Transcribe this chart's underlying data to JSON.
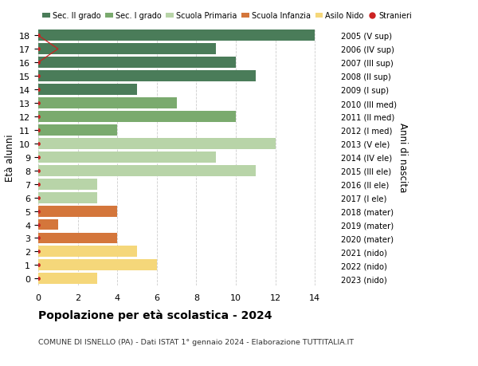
{
  "ages": [
    18,
    17,
    16,
    15,
    14,
    13,
    12,
    11,
    10,
    9,
    8,
    7,
    6,
    5,
    4,
    3,
    2,
    1,
    0
  ],
  "right_labels": [
    "2005 (V sup)",
    "2006 (IV sup)",
    "2007 (III sup)",
    "2008 (II sup)",
    "2009 (I sup)",
    "2010 (III med)",
    "2011 (II med)",
    "2012 (I med)",
    "2013 (V ele)",
    "2014 (IV ele)",
    "2015 (III ele)",
    "2016 (II ele)",
    "2017 (I ele)",
    "2018 (mater)",
    "2019 (mater)",
    "2020 (mater)",
    "2021 (nido)",
    "2022 (nido)",
    "2023 (nido)"
  ],
  "bar_values": [
    14,
    9,
    10,
    11,
    5,
    7,
    10,
    4,
    12,
    9,
    11,
    3,
    3,
    4,
    1,
    4,
    5,
    6,
    3
  ],
  "bar_colors": [
    "#4a7c59",
    "#4a7c59",
    "#4a7c59",
    "#4a7c59",
    "#4a7c59",
    "#7aaa6e",
    "#7aaa6e",
    "#7aaa6e",
    "#b8d4a8",
    "#b8d4a8",
    "#b8d4a8",
    "#b8d4a8",
    "#b8d4a8",
    "#d4763b",
    "#d4763b",
    "#d4763b",
    "#f5d77a",
    "#f5d77a",
    "#f5d77a"
  ],
  "legend_labels": [
    "Sec. II grado",
    "Sec. I grado",
    "Scuola Primaria",
    "Scuola Infanzia",
    "Asilo Nido",
    "Stranieri"
  ],
  "legend_colors": [
    "#4a7c59",
    "#7aaa6e",
    "#b8d4a8",
    "#d4763b",
    "#f5d77a",
    "#cc2222"
  ],
  "ylabel": "Età alunni",
  "right_ylabel": "Anni di nascita",
  "title": "Popolazione per età scolastica - 2024",
  "subtitle": "COMUNE DI ISNELLO (PA) - Dati ISTAT 1° gennaio 2024 - Elaborazione TUTTITALIA.IT",
  "xlim": [
    0,
    15
  ],
  "xticks": [
    0,
    2,
    4,
    6,
    8,
    10,
    12,
    14
  ],
  "background_color": "#ffffff",
  "grid_color": "#cccccc"
}
